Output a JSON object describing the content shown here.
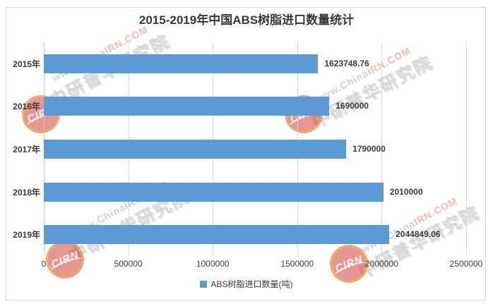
{
  "title": "2015-2019年中国ABS树脂进口数量统计",
  "chart_data": {
    "type": "bar",
    "orientation": "horizontal",
    "title": "2015-2019年中国ABS树脂进口数量统计",
    "categories": [
      "2015年",
      "2016年",
      "2017年",
      "2018年",
      "2019年"
    ],
    "series": [
      {
        "name": "ABS树脂进口数量(吨)",
        "values": [
          1623748.76,
          1690000,
          1790000,
          2010000,
          2044849.06
        ]
      }
    ],
    "value_labels": [
      "1623748.76",
      "1690000",
      "1790000",
      "2010000",
      "2044849.06"
    ],
    "xlim": [
      0,
      2500000
    ],
    "x_ticks": [
      0,
      500000,
      1000000,
      1500000,
      2000000,
      2500000
    ],
    "x_tick_labels": [
      "0",
      "500000",
      "1000000",
      "1500000",
      "2000000",
      "2500000"
    ],
    "grid": true,
    "legend_position": "bottom",
    "bar_color": "#5b9bd5"
  },
  "legend": {
    "items": [
      {
        "label": "ABS树脂进口数量(吨)",
        "color": "#5b9bd5"
      }
    ]
  },
  "watermark": {
    "url_prefix": "www.China",
    "url_suffix": "IRN.COM",
    "brand_text": "中研普华研究院",
    "logo_text": "CIRN"
  },
  "colors": {
    "bar": "#5b9bd5",
    "text": "#3a3a3a",
    "grid": "#d9d9d9"
  }
}
